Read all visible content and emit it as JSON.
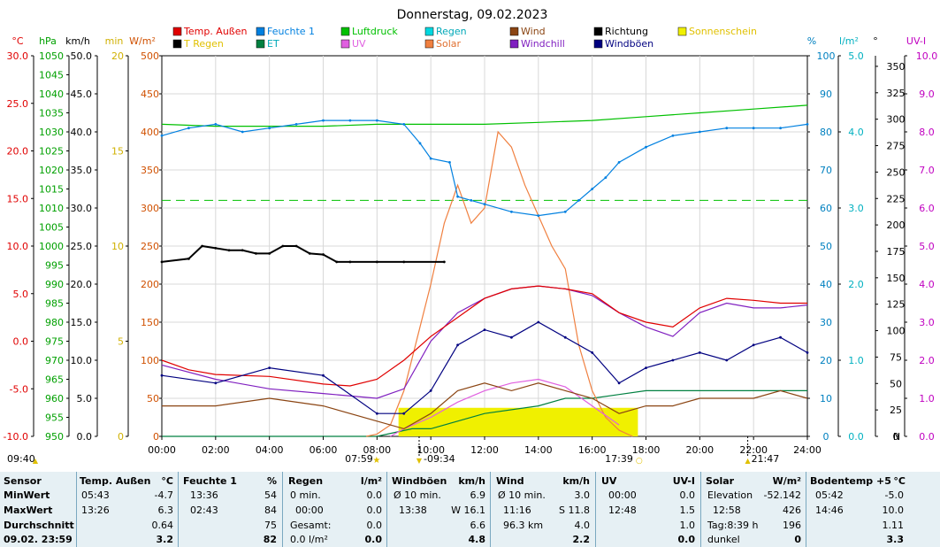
{
  "chart_data": {
    "type": "line",
    "title": "Donnerstag, 09.02.2023",
    "x_ticks": [
      "00:00",
      "02:00",
      "04:00",
      "06:00",
      "08:00",
      "10:00",
      "12:00",
      "14:00",
      "16:00",
      "18:00",
      "20:00",
      "22:00",
      "24:00"
    ],
    "x_range_hours": [
      0,
      24
    ],
    "left_axes": [
      {
        "unit": "°C",
        "color": "#e00000",
        "range": [
          -10,
          30
        ],
        "ticks": [
          "30.0",
          "25.0",
          "20.0",
          "15.0",
          "10.0",
          "5.0",
          "0.0",
          "-5.0",
          "-10.0"
        ]
      },
      {
        "unit": "hPa",
        "color": "#00a000",
        "range": [
          950,
          1050
        ],
        "ticks": [
          "1050",
          "1045",
          "1040",
          "1035",
          "1030",
          "1025",
          "1020",
          "1015",
          "1010",
          "1005",
          "1000",
          "995",
          "990",
          "985",
          "980",
          "975",
          "970",
          "965",
          "960",
          "955",
          "950"
        ]
      },
      {
        "unit": "km/h",
        "color": "#000000",
        "range": [
          0,
          50
        ],
        "ticks": [
          "50.0",
          "45.0",
          "40.0",
          "35.0",
          "30.0",
          "25.0",
          "20.0",
          "15.0",
          "10.0",
          "5.0",
          "0.0"
        ]
      },
      {
        "unit": "min",
        "color": "#d0b000",
        "range": [
          0,
          20
        ],
        "ticks": [
          "20",
          "15",
          "10",
          "5",
          "0"
        ]
      },
      {
        "unit": "W/m²",
        "color": "#d05000",
        "range": [
          0,
          500
        ],
        "ticks": [
          "500",
          "450",
          "400",
          "350",
          "300",
          "250",
          "200",
          "150",
          "100",
          "50",
          "0"
        ]
      }
    ],
    "right_axes": [
      {
        "unit": "%",
        "color": "#0080c0",
        "range": [
          0,
          100
        ],
        "ticks": [
          "100",
          "90",
          "80",
          "70",
          "60",
          "50",
          "40",
          "30",
          "20",
          "10",
          "0"
        ]
      },
      {
        "unit": "l/m²",
        "color": "#00b0c0",
        "range": [
          0,
          5
        ],
        "ticks": [
          "5.0",
          "4.0",
          "3.0",
          "2.0",
          "1.0",
          "0.0"
        ]
      },
      {
        "unit": "°",
        "color": "#000000",
        "range": [
          0,
          360
        ],
        "ticks": [
          "350",
          "325",
          "300",
          "275",
          "250",
          "225",
          "200",
          "175",
          "150",
          "125",
          "100",
          "75",
          "50",
          "25",
          "0"
        ],
        "bottom_label": "N"
      },
      {
        "unit": "UV-I",
        "color": "#c000c0",
        "range": [
          0,
          10
        ],
        "ticks": [
          "10.0",
          "9.0",
          "8.0",
          "7.0",
          "6.0",
          "5.0",
          "4.0",
          "3.0",
          "2.0",
          "1.0",
          "0.0"
        ]
      }
    ],
    "legend": [
      {
        "name": "Temp. Außen",
        "color": "#e00000"
      },
      {
        "name": "Feuchte 1",
        "color": "#0080e0"
      },
      {
        "name": "Luftdruck",
        "color": "#00c000"
      },
      {
        "name": "Regen",
        "color": "#00d8e0"
      },
      {
        "name": "Wind",
        "color": "#8b4513"
      },
      {
        "name": "Richtung",
        "color": "#000000"
      },
      {
        "name": "Sonnenschein",
        "color": "#f0f000"
      },
      {
        "name": "T Regen",
        "color": "#000000"
      },
      {
        "name": "ET",
        "color": "#008040"
      },
      {
        "name": "UV",
        "color": "#e060e0"
      },
      {
        "name": "Solar",
        "color": "#f08040"
      },
      {
        "name": "Windchill",
        "color": "#8020c0"
      },
      {
        "name": "Windböen",
        "color": "#000080"
      }
    ],
    "series": [
      {
        "name": "Luftdruck",
        "axis": "hPa",
        "x": [
          0,
          2,
          4,
          6,
          8,
          10,
          12,
          14,
          16,
          18,
          20,
          22,
          24
        ],
        "values": [
          1032,
          1031.5,
          1031.5,
          1031.5,
          1032,
          1032,
          1032,
          1032.5,
          1033,
          1034,
          1035,
          1036,
          1037
        ]
      },
      {
        "name": "Temp. Außen",
        "axis": "°C",
        "x": [
          0,
          1,
          2,
          4,
          6,
          7,
          8,
          9,
          10,
          11,
          12,
          13,
          14,
          15,
          16,
          17,
          18,
          19,
          20,
          21,
          22,
          23,
          24
        ],
        "values": [
          -2,
          -3,
          -3.5,
          -3.7,
          -4.5,
          -4.7,
          -4,
          -2,
          0.5,
          2.5,
          4.5,
          5.5,
          5.8,
          5.5,
          5,
          3,
          2,
          1.5,
          3.5,
          4.5,
          4.3,
          4,
          4
        ]
      },
      {
        "name": "Feuchte 1",
        "axis": "%",
        "x": [
          0,
          1,
          2,
          3,
          4,
          5,
          6,
          7,
          8,
          9,
          9.6,
          10,
          10.7,
          11,
          11.5,
          12,
          13,
          14,
          15,
          15.5,
          16,
          16.5,
          17,
          18,
          19,
          20,
          21,
          22,
          23,
          24
        ],
        "values": [
          79,
          81,
          82,
          80,
          81,
          82,
          83,
          83,
          83,
          82,
          77,
          73,
          72,
          63,
          62,
          61,
          59,
          58,
          59,
          62,
          65,
          68,
          72,
          76,
          79,
          80,
          81,
          81,
          81,
          82
        ]
      },
      {
        "name": "Richtung",
        "axis": "°",
        "x": [
          0,
          1,
          1.5,
          2,
          2.5,
          3,
          3.5,
          4,
          4.5,
          5,
          5.5,
          6,
          6.5,
          7,
          8,
          9,
          10.5
        ],
        "values": [
          165,
          168,
          180,
          178,
          176,
          176,
          173,
          173,
          180,
          180,
          173,
          172,
          165,
          165,
          165,
          165,
          165
        ]
      },
      {
        "name": "Solar",
        "axis": "W/m²",
        "x": [
          7.6,
          8,
          8.5,
          9,
          9.5,
          10,
          10.5,
          11,
          11.5,
          12,
          12.5,
          13,
          13.5,
          14,
          14.5,
          15,
          15.5,
          16,
          16.5,
          17,
          17.5
        ],
        "values": [
          0,
          3,
          15,
          60,
          130,
          200,
          280,
          330,
          280,
          300,
          400,
          380,
          330,
          290,
          250,
          220,
          120,
          60,
          25,
          8,
          0
        ]
      },
      {
        "name": "UV",
        "axis": "UV-I",
        "x": [
          8.5,
          9,
          10,
          11,
          12,
          13,
          14,
          15,
          16,
          17
        ],
        "values": [
          0.0,
          0.2,
          0.5,
          0.9,
          1.2,
          1.4,
          1.5,
          1.3,
          0.8,
          0.3
        ]
      },
      {
        "name": "Windchill",
        "axis": "°C",
        "x": [
          0,
          2,
          4,
          6,
          8,
          9,
          10,
          11,
          12,
          13,
          14,
          15,
          16,
          17,
          18,
          19,
          20,
          21,
          22,
          23,
          24
        ],
        "values": [
          -2.5,
          -4,
          -5,
          -5.5,
          -6,
          -5,
          0,
          3,
          4.5,
          5.5,
          5.8,
          5.5,
          4.8,
          3,
          1.5,
          0.5,
          3,
          4,
          3.5,
          3.5,
          3.8
        ]
      },
      {
        "name": "Windböen",
        "axis": "km/h",
        "x": [
          0,
          2,
          4,
          6,
          8,
          9,
          10,
          11,
          12,
          13,
          14,
          15,
          16,
          17,
          18,
          19,
          20,
          21,
          22,
          23,
          24
        ],
        "values": [
          8,
          7,
          9,
          8,
          3,
          3,
          6,
          12,
          14,
          13,
          15,
          13,
          11,
          7,
          9,
          10,
          11,
          10,
          12,
          13,
          11
        ]
      },
      {
        "name": "Wind",
        "axis": "km/h",
        "x": [
          0,
          2,
          4,
          6,
          8,
          9,
          10,
          11,
          12,
          13,
          14,
          15,
          16,
          17,
          18,
          19,
          20,
          21,
          22,
          23,
          24
        ],
        "values": [
          4,
          4,
          5,
          4,
          2,
          1,
          3,
          6,
          7,
          6,
          7,
          6,
          5,
          3,
          4,
          4,
          5,
          5,
          5,
          6,
          5
        ]
      },
      {
        "name": "ET",
        "axis": "l/m²",
        "x": [
          0,
          8,
          9.3,
          10,
          11,
          12,
          14,
          15,
          16,
          17,
          18,
          19,
          24
        ],
        "values": [
          0,
          0,
          0.1,
          0.1,
          0.2,
          0.3,
          0.4,
          0.5,
          0.5,
          0.55,
          0.6,
          0.6,
          0.6
        ]
      }
    ],
    "sunshine_band": {
      "from_hour": 8.8,
      "to_hour": 17.7,
      "height_min": 1.5
    },
    "markers": {
      "sunrise": "07:59",
      "sunset": "17:39",
      "rain_start": "09:34",
      "rain_end": "21:47",
      "now": "09:40"
    },
    "pressure_reference_hpa": 1012
  },
  "table": {
    "rowlabels": {
      "sensor": "Sensor",
      "min": "MinWert",
      "max": "MaxWert",
      "avg": "Durchschnitt",
      "now": "09.02. 23:59"
    },
    "temp": {
      "name": "Temp. Außen",
      "unit": "°C",
      "min_time": "05:43",
      "min_val": "-4.7",
      "max_time": "13:26",
      "max_val": "6.3",
      "avg": "0.64",
      "now": "3.2"
    },
    "hum": {
      "name": "Feuchte 1",
      "unit": "%",
      "min_time": "13:36",
      "min_val": "54",
      "max_time": "02:43",
      "max_val": "84",
      "avg": "75",
      "now": "82"
    },
    "rain": {
      "name": "Regen",
      "unit": "l/m²",
      "r1_label": "0 min.",
      "r1_val": "0.0",
      "r2_label": "00:00",
      "r2_val": "0.0",
      "r3_label": "Gesamt:",
      "r3_val": "0.0",
      "now_label": "0.0 l/m²",
      "now": "0.0"
    },
    "gust": {
      "name": "Windböen",
      "unit": "km/h",
      "r1_label": "Ø 10 min.",
      "r1_val": "6.9",
      "r2_time": "13:38",
      "r2_val": "W 16.1",
      "avg": "6.6",
      "now": "4.8"
    },
    "wind": {
      "name": "Wind",
      "unit": "km/h",
      "r1_label": "Ø 10 min.",
      "r1_val": "3.0",
      "r2_time": "11:16",
      "r2_val": "S 11.8",
      "r3_label": "96.3 km",
      "r3_val": "4.0",
      "now": "2.2"
    },
    "uv": {
      "name": "UV",
      "unit": "UV-I",
      "min_time": "00:00",
      "min_val": "0.0",
      "max_time": "12:48",
      "max_val": "1.5",
      "avg": "1.0",
      "now": "0.0"
    },
    "solar": {
      "name": "Solar",
      "unit": "W/m²",
      "r1_label": "Elevation",
      "r1_val": "-52.142",
      "r2_time": "12:58",
      "r2_val": "426",
      "r3_label": "Tag:8:39 h",
      "r3_val": "196",
      "now_label": "dunkel",
      "now": "0"
    },
    "soil": {
      "name": "Bodentemp +5",
      "unit": "°C",
      "min_time": "05:42",
      "min_val": "-5.0",
      "max_time": "14:46",
      "max_val": "10.0",
      "avg": "1.11",
      "now": "3.3"
    }
  }
}
